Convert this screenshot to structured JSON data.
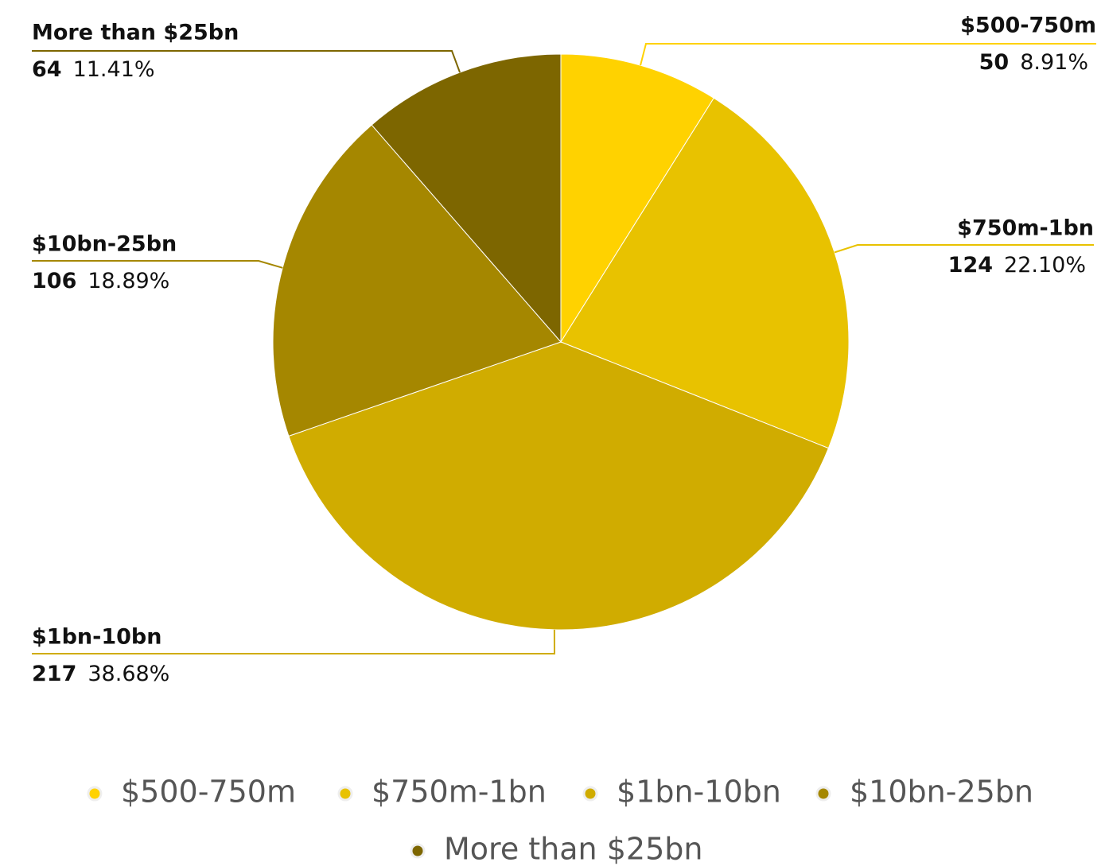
{
  "chart_data": {
    "type": "pie",
    "categories": [
      "$500-750m",
      "$750m-1bn",
      "$1bn-10bn",
      "$10bn-25bn",
      "More than $25bn"
    ],
    "values": [
      50,
      124,
      217,
      106,
      64
    ],
    "percent_labels": [
      "8.91%",
      "22.10%",
      "38.68%",
      "18.89%",
      "11.41%"
    ],
    "colors": [
      "#ffd200",
      "#e8c200",
      "#d0ac00",
      "#a58700",
      "#7d6600"
    ],
    "legend": "bottom"
  }
}
